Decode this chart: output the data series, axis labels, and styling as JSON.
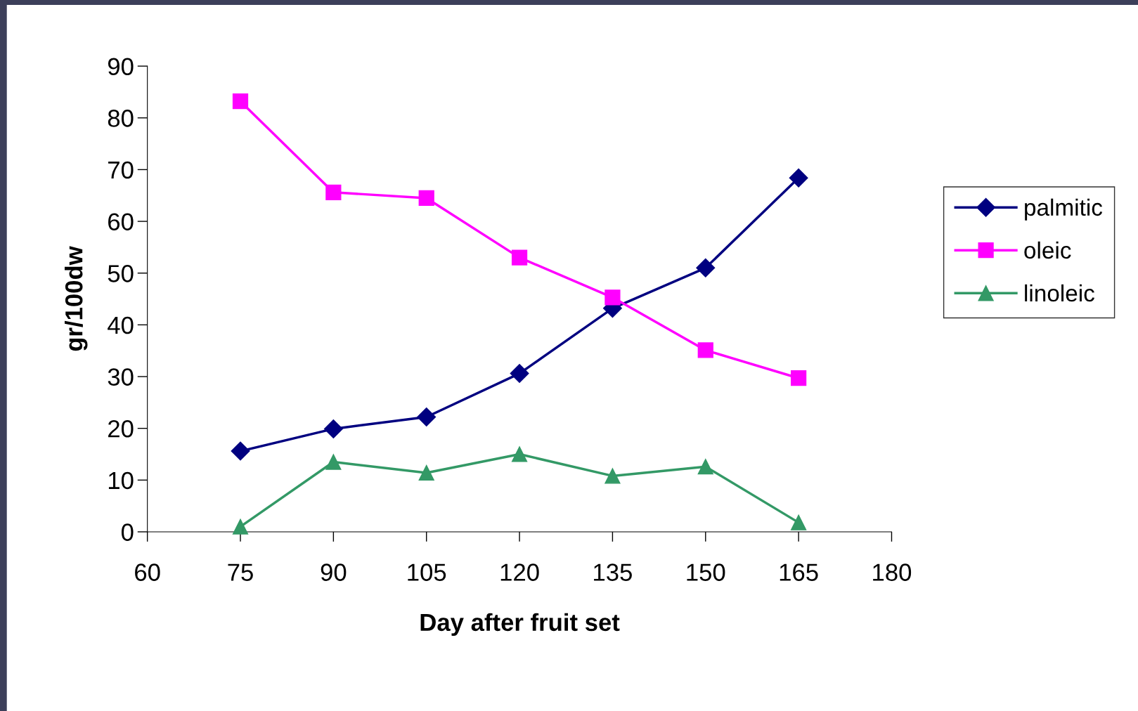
{
  "chart_data": {
    "type": "line",
    "xlabel": "Day after fruit set",
    "ylabel": "gr/100dw",
    "x": [
      75,
      90,
      105,
      120,
      135,
      150,
      165
    ],
    "series": [
      {
        "name": "palmitic",
        "color": "#000080",
        "marker": "diamond",
        "values": [
          15.6,
          19.9,
          22.2,
          30.6,
          43.2,
          51.0,
          68.4
        ]
      },
      {
        "name": "oleic",
        "color": "#ff00ff",
        "marker": "square",
        "values": [
          83.2,
          65.6,
          64.5,
          53.0,
          45.3,
          35.1,
          29.7
        ]
      },
      {
        "name": "linoleic",
        "color": "#339966",
        "marker": "triangle",
        "values": [
          1.0,
          13.5,
          11.4,
          15.0,
          10.8,
          12.6,
          1.8
        ]
      }
    ],
    "xlim": [
      60,
      180
    ],
    "xticks": [
      60,
      75,
      90,
      105,
      120,
      135,
      150,
      165,
      180
    ],
    "ylim": [
      0,
      90
    ],
    "yticks": [
      0,
      10,
      20,
      30,
      40,
      50,
      60,
      70,
      80,
      90
    ],
    "grid": false,
    "legend": "right",
    "line_style": "solid"
  }
}
